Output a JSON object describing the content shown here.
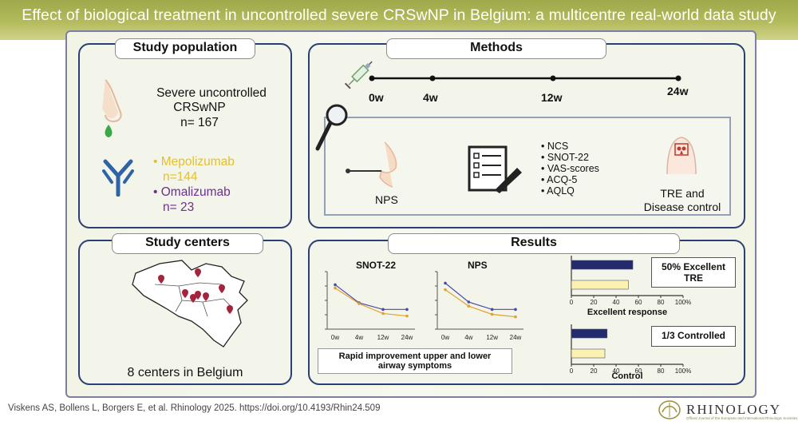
{
  "banner": {
    "title": "Effect of biological treatment in uncontrolled severe CRSwNP in Belgium: a multicentre real-world data study"
  },
  "study_population": {
    "title": "Study population",
    "line1": "Severe uncontrolled",
    "line2": "CRSwNP",
    "line3": "n= 167",
    "drugs": [
      {
        "name": "Mepolizumab",
        "n": "n=144",
        "color": "#e3c02e"
      },
      {
        "name": "Omalizumab",
        "n": "n= 23",
        "color": "#6c2f8f"
      }
    ]
  },
  "methods": {
    "title": "Methods",
    "timeline": [
      "0w",
      "4w",
      "12w",
      "24w"
    ],
    "nps_label": "NPS",
    "bullets": [
      "NCS",
      "SNOT-22",
      "VAS-scores",
      "ACQ-5",
      "AQLQ"
    ],
    "tre_line1": "TRE and",
    "tre_line2": "Disease control"
  },
  "study_centers": {
    "title": "Study centers",
    "caption": "8 centers in Belgium"
  },
  "results": {
    "title": "Results",
    "caption_line1": "Rapid improvement upper and lower",
    "caption_line2": "airway symptoms",
    "response_label1": "50% Excellent",
    "response_label2": "TRE",
    "control_label": "1/3 Controlled"
  },
  "chart_data": [
    {
      "type": "line",
      "title": "SNOT-22",
      "x": [
        "0w",
        "4w",
        "12w",
        "24w"
      ],
      "series": [
        {
          "values": [
            54,
            32,
            24,
            24
          ],
          "color": "#4a4aa8"
        },
        {
          "values": [
            50,
            31,
            19,
            16
          ],
          "color": "#e0a22c"
        }
      ],
      "ylim": [
        0,
        70
      ]
    },
    {
      "type": "line",
      "title": "NPS",
      "x": [
        "0w",
        "4w",
        "12w",
        "24w"
      ],
      "series": [
        {
          "values": [
            5.6,
            3.3,
            2.4,
            2.4
          ],
          "color": "#4a4aa8"
        },
        {
          "values": [
            4.8,
            2.8,
            1.8,
            1.5
          ],
          "color": "#e0a22c"
        }
      ],
      "ylim": [
        0,
        7
      ]
    },
    {
      "type": "bar",
      "orientation": "horizontal",
      "xlabel": "Excellent response",
      "ticks": [
        "0",
        "20",
        "40",
        "60",
        "80",
        "100%"
      ],
      "xlim": [
        0,
        100
      ],
      "bars": [
        {
          "value": 55,
          "color": "#232a6e"
        },
        {
          "value": 51,
          "color": "#fbf1b3"
        }
      ]
    },
    {
      "type": "bar",
      "orientation": "horizontal",
      "xlabel": "Control",
      "ticks": [
        "0",
        "20",
        "40",
        "60",
        "80",
        "100%"
      ],
      "xlim": [
        0,
        100
      ],
      "bars": [
        {
          "value": 32,
          "color": "#232a6e"
        },
        {
          "value": 30,
          "color": "#fbf1b3"
        }
      ]
    }
  ],
  "footer": {
    "citation": "Viskens AS, Bollens L, Borgers E, et al.    Rhinology 2025.    https://doi.org/10.4193/Rhin24.509",
    "logo": "RHINOLOGY",
    "logo_sub": "Official Journal of the European and International Rhinologic Societies"
  }
}
